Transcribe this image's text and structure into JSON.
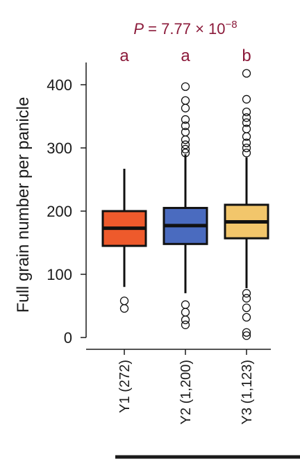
{
  "chart_data": {
    "type": "box",
    "ylabel": "Full grain number per panicle",
    "ylim": [
      0,
      400
    ],
    "yticks": [
      "0",
      "100",
      "200",
      "300",
      "400"
    ],
    "ytick_values": [
      0,
      100,
      200,
      300,
      400
    ],
    "p_value": {
      "prefix": "P",
      "text": " = 7.77 × 10",
      "exponent": "−8"
    },
    "annotation_color": "#8b1a3a",
    "categories": [
      "Y1 (272)",
      "Y2 (1,200)",
      "Y3 (1,123)"
    ],
    "letters": [
      "a",
      "a",
      "b"
    ],
    "colors": [
      "#ee5a2c",
      "#4a6bbf",
      "#f2c66b"
    ],
    "boxes": [
      {
        "whisker_low": 80,
        "q1": 145,
        "median": 173,
        "q3": 200,
        "whisker_high": 267,
        "outliers": [
          58,
          46
        ]
      },
      {
        "whisker_low": 70,
        "q1": 148,
        "median": 177,
        "q3": 205,
        "whisker_high": 290,
        "outliers": [
          397,
          375,
          363,
          345,
          335,
          325,
          313,
          305,
          298,
          292,
          52,
          40,
          28,
          20
        ]
      },
      {
        "whisker_low": 78,
        "q1": 157,
        "median": 183,
        "q3": 210,
        "whisker_high": 285,
        "outliers": [
          418,
          377,
          357,
          348,
          340,
          330,
          318,
          308,
          300,
          292,
          70,
          62,
          47,
          32,
          8,
          3
        ]
      }
    ]
  }
}
